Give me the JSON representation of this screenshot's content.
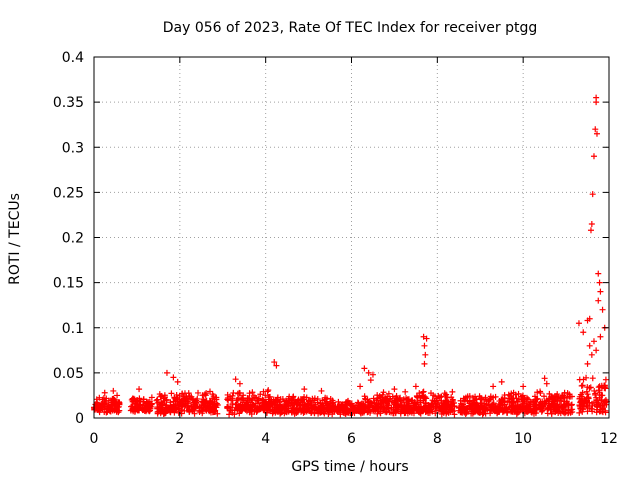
{
  "chart_data": {
    "type": "scatter",
    "title": "Day 056 of 2023, Rate Of TEC Index for receiver ptgg",
    "xlabel": "GPS time / hours",
    "ylabel": "ROTI / TECUs",
    "xlim": [
      0,
      12
    ],
    "ylim": [
      0,
      0.4
    ],
    "x_ticks": [
      "0",
      "2",
      "4",
      "6",
      "8",
      "10",
      "12"
    ],
    "y_ticks": [
      "0",
      "0.05",
      "0.1",
      "0.15",
      "0.2",
      "0.25",
      "0.3",
      "0.35",
      "0.4"
    ],
    "grid": true,
    "marker": "+",
    "series_color": "#ff0000",
    "baseline_segments": [
      [
        0.0,
        0.6,
        0.006,
        0.026
      ],
      [
        0.85,
        1.35,
        0.006,
        0.024
      ],
      [
        1.45,
        2.9,
        0.004,
        0.03
      ],
      [
        3.1,
        4.15,
        0.004,
        0.032
      ],
      [
        4.15,
        5.6,
        0.004,
        0.026
      ],
      [
        5.6,
        6.3,
        0.004,
        0.02
      ],
      [
        6.3,
        7.6,
        0.004,
        0.03
      ],
      [
        7.6,
        8.4,
        0.004,
        0.03
      ],
      [
        8.5,
        9.6,
        0.004,
        0.026
      ],
      [
        9.6,
        11.15,
        0.004,
        0.03
      ],
      [
        11.3,
        11.95,
        0.004,
        0.05
      ]
    ],
    "x": [
      0.25,
      0.45,
      1.05,
      1.7,
      1.85,
      1.95,
      3.3,
      3.4,
      4.2,
      4.25,
      4.9,
      5.3,
      6.2,
      6.3,
      6.4,
      6.45,
      6.5,
      7.0,
      7.5,
      7.68,
      7.7,
      7.72,
      7.75,
      7.7,
      9.3,
      9.5,
      10.0,
      10.5,
      10.55,
      11.3,
      11.4,
      11.5,
      11.55,
      11.58,
      11.6,
      11.62,
      11.65,
      11.68,
      11.7,
      11.7,
      11.72,
      11.75,
      11.78,
      11.8,
      11.85,
      11.9,
      11.7,
      11.6,
      11.5,
      11.55,
      11.75,
      11.8,
      11.65
    ],
    "y": [
      0.028,
      0.03,
      0.032,
      0.05,
      0.045,
      0.04,
      0.043,
      0.038,
      0.062,
      0.058,
      0.032,
      0.03,
      0.035,
      0.055,
      0.05,
      0.042,
      0.048,
      0.032,
      0.035,
      0.09,
      0.08,
      0.07,
      0.088,
      0.06,
      0.035,
      0.04,
      0.035,
      0.044,
      0.038,
      0.105,
      0.095,
      0.108,
      0.11,
      0.208,
      0.215,
      0.248,
      0.29,
      0.32,
      0.355,
      0.35,
      0.315,
      0.16,
      0.15,
      0.14,
      0.12,
      0.1,
      0.075,
      0.07,
      0.06,
      0.08,
      0.13,
      0.09,
      0.085
    ]
  }
}
